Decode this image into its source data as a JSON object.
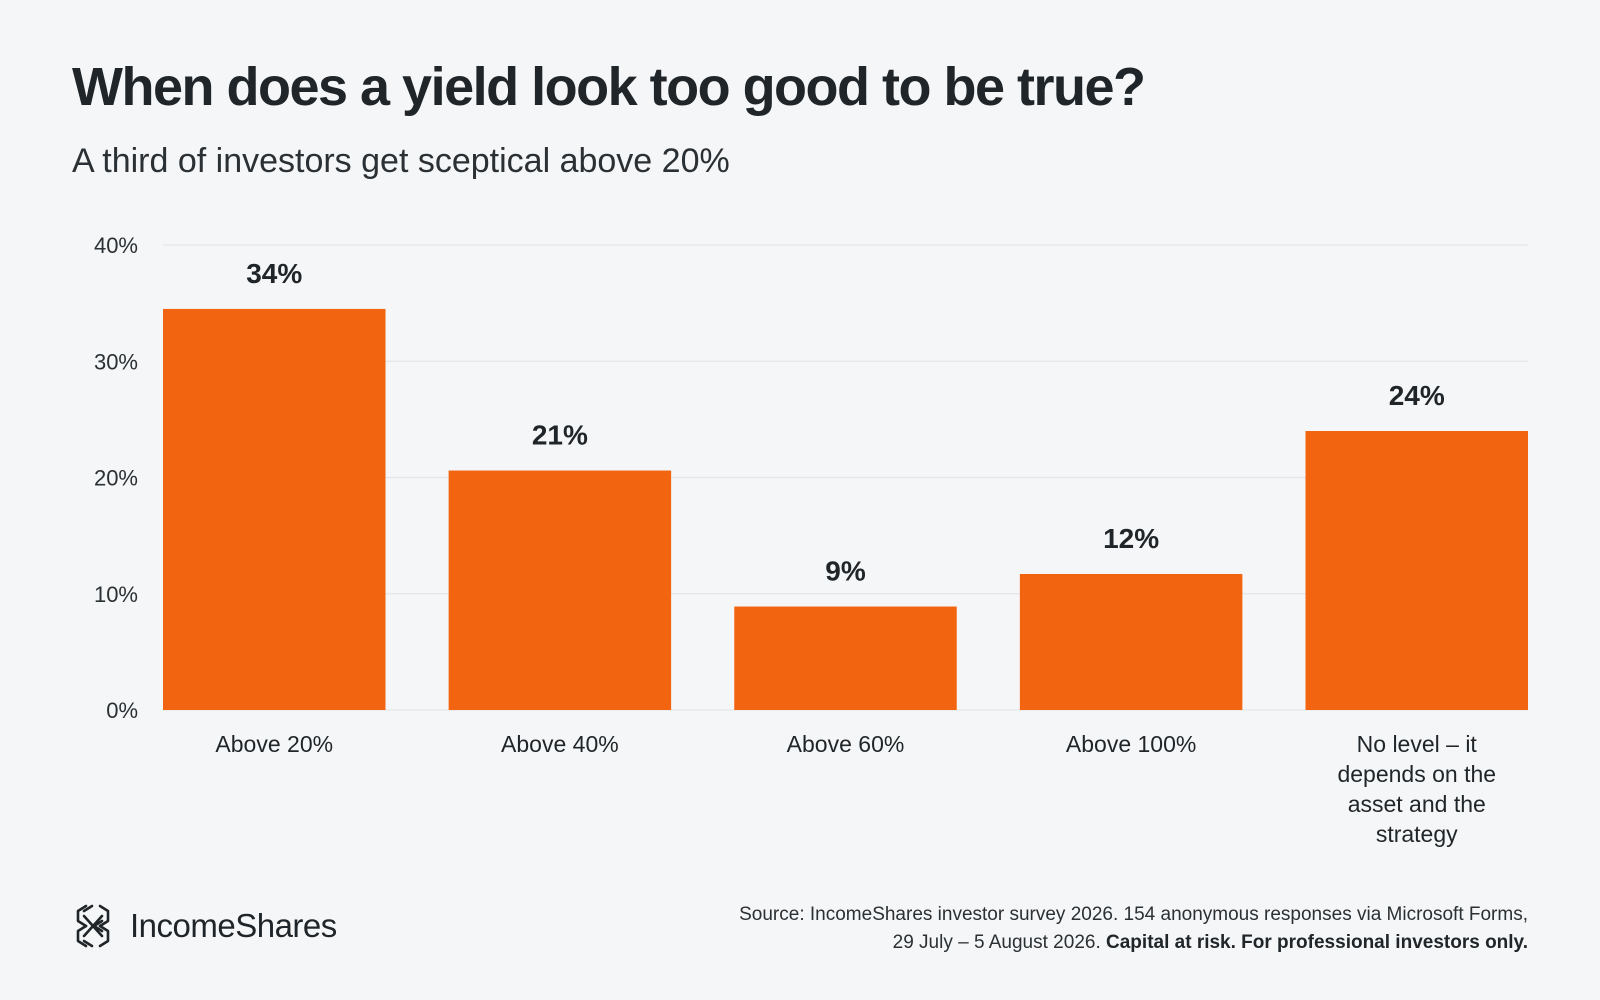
{
  "header": {
    "title": "When does a yield look too good to be true?",
    "subtitle": "A third of investors get sceptical above 20%"
  },
  "colors": {
    "background": "#f5f6f8",
    "bar": "#f2640f",
    "gridline": "#e3e5e8",
    "text": "#1f2528"
  },
  "chart_data": {
    "type": "bar",
    "title": "When does a yield look too good to be true?",
    "subtitle": "A third of investors get sceptical above 20%",
    "categories": [
      [
        "Above 20%"
      ],
      [
        "Above 40%"
      ],
      [
        "Above 60%"
      ],
      [
        "Above 100%"
      ],
      [
        "No level – it",
        "depends on the",
        "asset and the",
        "strategy"
      ]
    ],
    "values": [
      34.5,
      20.6,
      8.9,
      11.7,
      24.0
    ],
    "value_labels": [
      "34%",
      "21%",
      "9%",
      "12%",
      "24%"
    ],
    "y_ticks": [
      0,
      10,
      20,
      30,
      40
    ],
    "y_tick_labels": [
      "0%",
      "10%",
      "20%",
      "30%",
      "40%"
    ],
    "ylim": [
      0,
      40
    ],
    "xlabel": "",
    "ylabel": "",
    "grid": true,
    "legend": "none"
  },
  "footer": {
    "brand_icon": "incomeshares-logo-icon",
    "brand_name": "IncomeShares",
    "source_line1": "Source: IncomeShares investor survey 2026. 154 anonymous responses via Microsoft Forms,",
    "source_line2": "29 July – 5 August 2026. ",
    "source_line2_bold": "Capital at risk. For professional investors only."
  }
}
